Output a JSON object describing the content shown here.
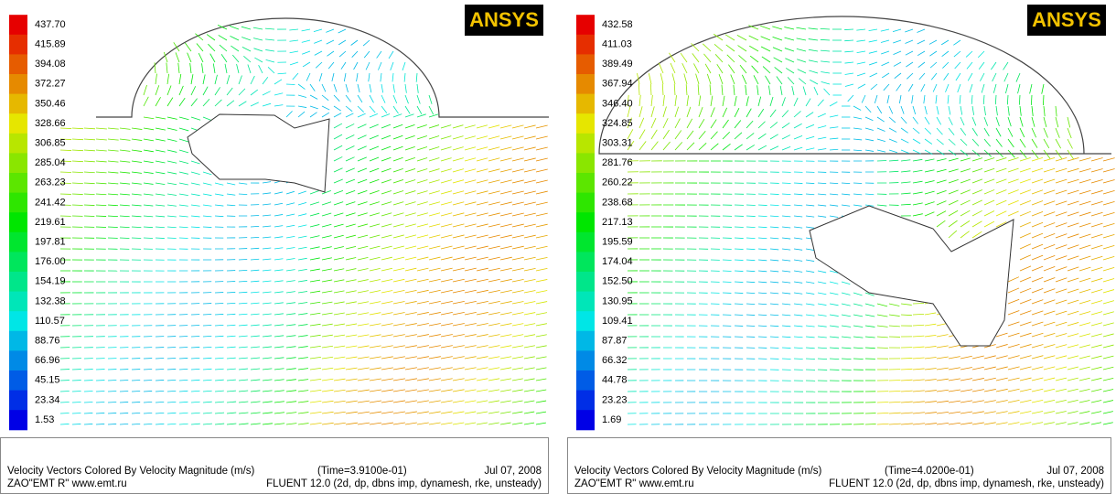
{
  "panels": [
    {
      "logo": "ANSYS",
      "colorbar": [
        "437.70",
        "415.89",
        "394.08",
        "372.27",
        "350.46",
        "328.66",
        "306.85",
        "285.04",
        "263.23",
        "241.42",
        "219.61",
        "197.81",
        "176.00",
        "154.19",
        "132.38",
        "110.57",
        "88.76",
        "66.96",
        "45.15",
        "23.34",
        "1.53"
      ],
      "caption": {
        "title": "Velocity Vectors Colored By Velocity Magnitude (m/s)",
        "time": "(Time=3.9100e-01)",
        "date": "Jul 07, 2008",
        "org": "ZAO\"EMT R\" www.emt.ru",
        "solver": "FLUENT 12.0 (2d, dp, dbns imp, dynamesh, rke, unsteady)"
      }
    },
    {
      "logo": "ANSYS",
      "colorbar": [
        "432.58",
        "411.03",
        "389.49",
        "367.94",
        "346.40",
        "324.85",
        "303.31",
        "281.76",
        "260.22",
        "238.68",
        "217.13",
        "195.59",
        "174.04",
        "152.50",
        "130.95",
        "109.41",
        "87.87",
        "66.32",
        "44.78",
        "23.23",
        "1.69"
      ],
      "caption": {
        "title": "Velocity Vectors Colored By Velocity Magnitude (m/s)",
        "time": "(Time=4.0200e-01)",
        "date": "Jul 07, 2008",
        "org": "ZAO\"EMT R\" www.emt.ru",
        "solver": "FLUENT 12.0 (2d, dp, dbns imp, dynamesh, rke, unsteady)"
      }
    }
  ]
}
